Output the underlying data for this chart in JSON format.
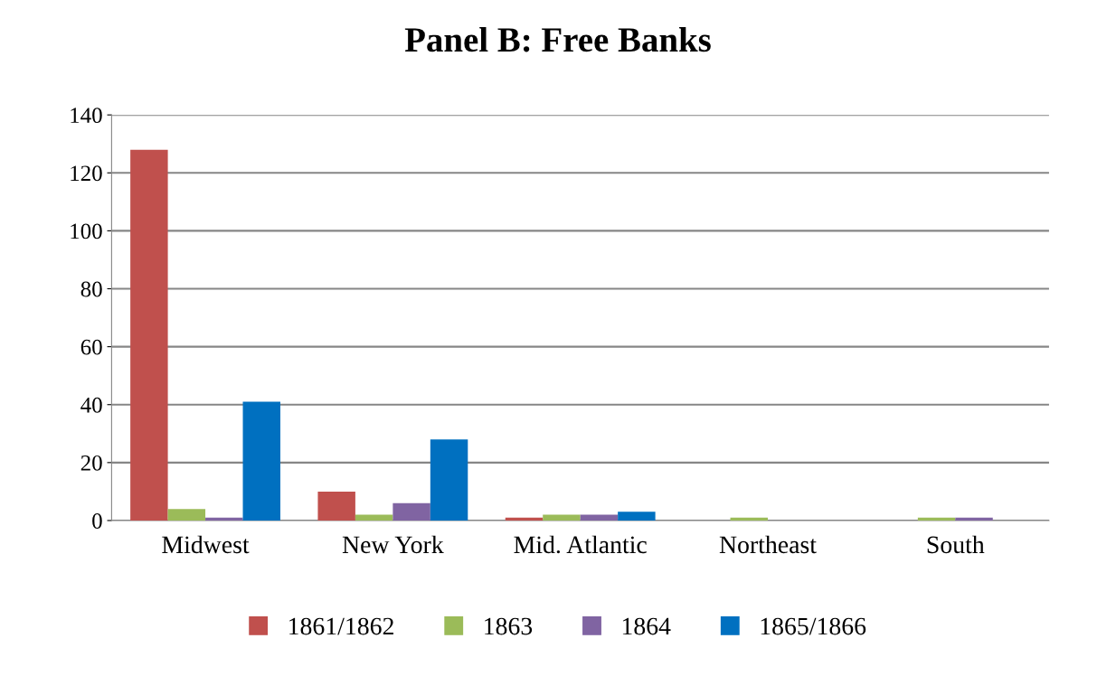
{
  "chart_data": {
    "type": "bar",
    "title": "Panel B: Free Banks",
    "categories": [
      "Midwest",
      "New York",
      "Mid. Atlantic",
      "Northeast",
      "South"
    ],
    "series": [
      {
        "name": "1861/1862",
        "color": "#c0504d",
        "values": [
          128,
          10,
          1,
          0,
          0
        ]
      },
      {
        "name": "1863",
        "color": "#9bbb59",
        "values": [
          4,
          2,
          2,
          1,
          1
        ]
      },
      {
        "name": "1864",
        "color": "#8064a2",
        "values": [
          1,
          6,
          2,
          0,
          1
        ]
      },
      {
        "name": "1865/1866",
        "color": "#0070c0",
        "values": [
          41,
          28,
          3,
          0,
          0
        ]
      }
    ],
    "ylim": [
      0,
      140
    ],
    "yticks": [
      0,
      20,
      40,
      60,
      80,
      100,
      120,
      140
    ],
    "grid": "y",
    "legend": "bottom"
  }
}
